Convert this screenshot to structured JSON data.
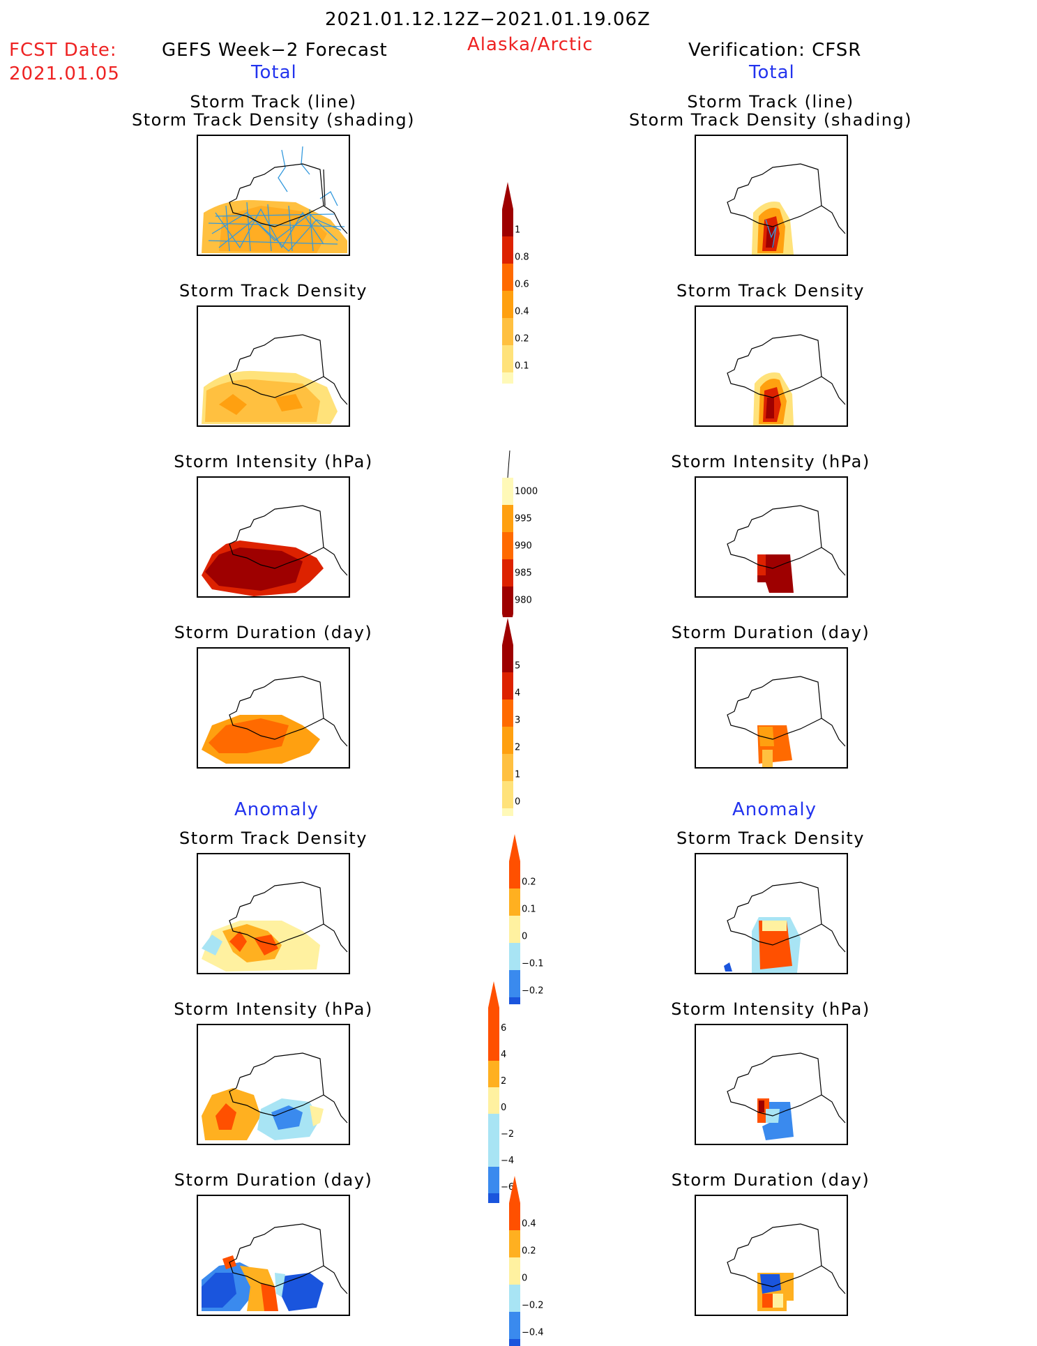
{
  "header": {
    "period": "2021.01.12.12Z−2021.01.19.06Z",
    "fcst_label": "FCST Date:",
    "fcst_date": "2021.01.05",
    "left_title": "GEFS Week−2 Forecast",
    "region": "Alaska/Arctic",
    "right_title": "Verification: CFSR",
    "total_label": "Total",
    "anomaly_label": "Anomaly"
  },
  "panel_titles": {
    "track_line": "Storm Track (line)",
    "track_shading": "Storm Track Density (shading)",
    "density": "Storm Track Density",
    "intensity": "Storm Intensity (hPa)",
    "duration": "Storm Duration (day)"
  },
  "colorbars": {
    "density": [
      "1",
      "0.8",
      "0.6",
      "0.4",
      "0.2",
      "0.1"
    ],
    "intensity": [
      "1000",
      "995",
      "990",
      "985",
      "980"
    ],
    "duration": [
      "5",
      "4",
      "3",
      "2",
      "1",
      "0"
    ],
    "anom_density": [
      "0.2",
      "0.1",
      "0",
      "−0.1",
      "−0.2"
    ],
    "anom_intensity": [
      "6",
      "4",
      "2",
      "0",
      "−2",
      "−4",
      "−6"
    ],
    "anom_duration": [
      "0.4",
      "0.2",
      "0",
      "−0.2",
      "−0.4"
    ]
  },
  "colors": {
    "title_red": "#ee2222",
    "title_blue": "#2233ee",
    "warm_scale": [
      "#fff9b8",
      "#ffe27a",
      "#ffc040",
      "#ffa010",
      "#ff6a00",
      "#dd2200",
      "#9e0000"
    ],
    "anom_scale": [
      "#1a55dd",
      "#3a8aee",
      "#a8e4f4",
      "#fff1a0",
      "#ffb020",
      "#ff5000"
    ]
  }
}
